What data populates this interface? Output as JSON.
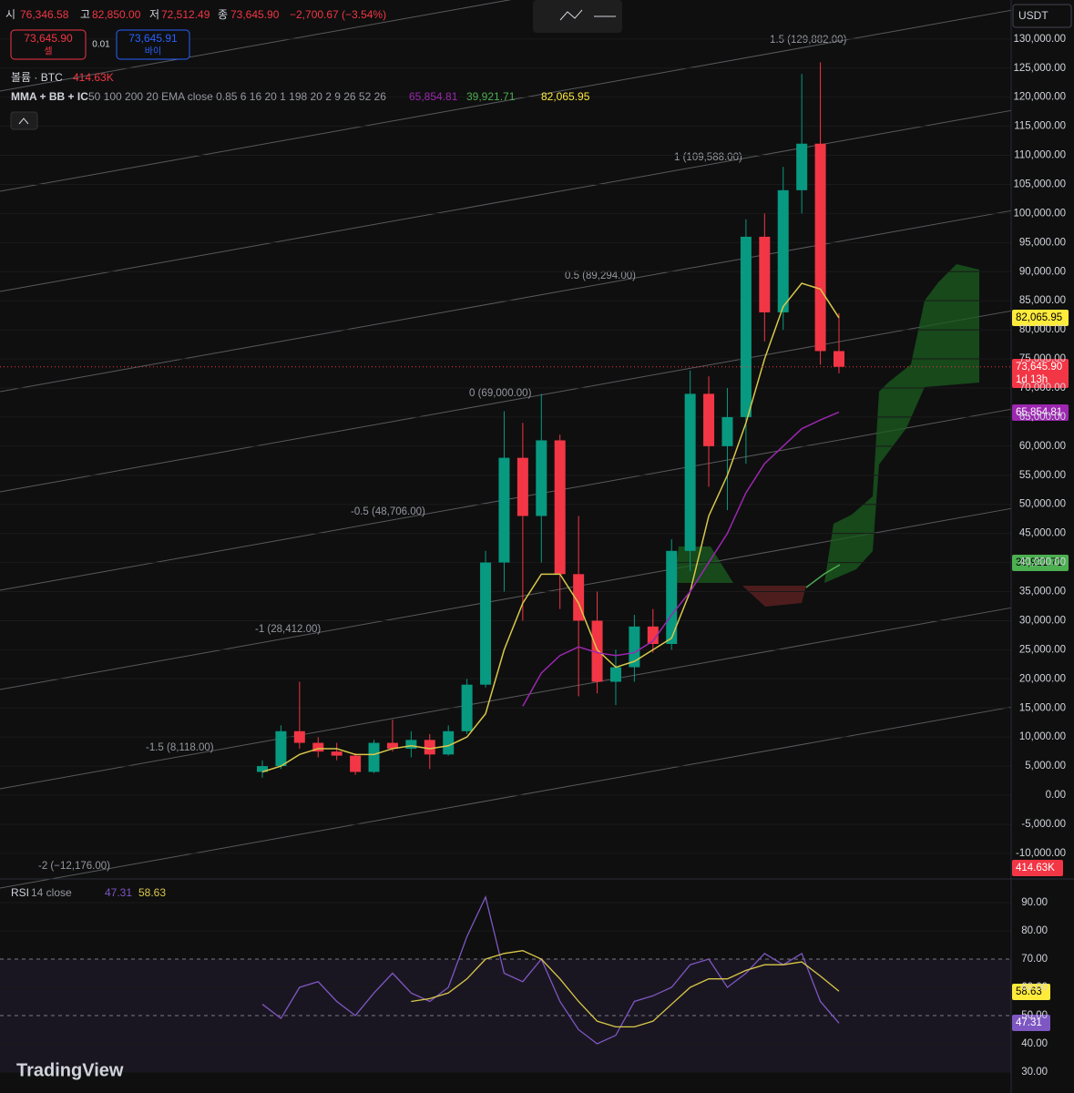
{
  "header": {
    "open_label": "시",
    "open": "76,346.58",
    "high_label": "고",
    "high": "82,850.00",
    "low_label": "저",
    "low": "72,512.49",
    "close_label": "종",
    "close": "73,645.90",
    "change": "−2,700.67 (−3.54%)"
  },
  "trade": {
    "sell_price": "73,645.90",
    "sell_label": "셀",
    "spread": "0.01",
    "buy_price": "73,645.91",
    "buy_label": "바이"
  },
  "volume_legend": {
    "title": "볼륨 · BTC",
    "value": "414.63K"
  },
  "indicator_legend": {
    "title": "MMA + BB + IC",
    "params": "50 100 200 20 EMA close 0.85 6 16 20 1 198 20 2 9 26 52 26",
    "v1": "65,854.81",
    "v2": "39,921.71",
    "v3": "82,065.95"
  },
  "currency": "USDT",
  "fib_labels": [
    "1.5 (129,882.00)",
    "1 (109,588.00)",
    "0.5 (89,294.00)",
    "0 (69,000.00)",
    "-0.5 (48,706.00)",
    "-1 (28,412.00)",
    "-1.5 (8,118.00)",
    "-2 (−12,176.00)"
  ],
  "axis_tags": {
    "ma_top": "82,065.95",
    "price": "73,645.90",
    "countdown": "1d 13h",
    "ma_mid": "65,854.81",
    "cloud": "39,921.71",
    "volume": "414.63K",
    "rsi_ma": "58.63",
    "rsi": "47.31"
  },
  "rsi_legend": {
    "title": "RSI",
    "params": "14 close",
    "v1": "47.31",
    "v2": "58.63"
  },
  "logo": "TradingView",
  "chart_data": [
    {
      "type": "candlestick",
      "categories": [
        null,
        null,
        null,
        null,
        null,
        null,
        null,
        null,
        null,
        null,
        null,
        null,
        null,
        null,
        null,
        null,
        null,
        null,
        null,
        null,
        null,
        null,
        null,
        null,
        null,
        null,
        null,
        null,
        null,
        null,
        null,
        null
      ],
      "open": [
        4000,
        5000,
        11000,
        9000,
        7500,
        6800,
        4000,
        9000,
        8000,
        9500,
        7000,
        11000,
        19000,
        40000,
        58000,
        48000,
        61000,
        38000,
        30000,
        19500,
        22000,
        29000,
        26000,
        42000,
        69000,
        60000,
        65000,
        96000,
        83000,
        104000,
        112000,
        76346.58
      ],
      "high": [
        6000,
        12000,
        19500,
        10000,
        9000,
        7200,
        9500,
        13000,
        11000,
        10500,
        12000,
        20000,
        42000,
        66000,
        64000,
        69000,
        62000,
        48000,
        35000,
        25000,
        31000,
        32000,
        44000,
        73000,
        72000,
        70000,
        99000,
        100000,
        108000,
        124000,
        126000,
        82850
      ],
      "low": [
        3000,
        4500,
        8000,
        6500,
        6000,
        3500,
        3800,
        7500,
        6500,
        4500,
        6800,
        10500,
        18500,
        35000,
        30000,
        40000,
        32000,
        17000,
        17500,
        15500,
        19500,
        24500,
        25000,
        38500,
        53000,
        49000,
        57000,
        78000,
        80000,
        100000,
        74000,
        72512.49
      ],
      "close": [
        5000,
        11000,
        9000,
        7500,
        6800,
        4000,
        9000,
        8000,
        9500,
        7000,
        11000,
        19000,
        40000,
        58000,
        48000,
        61000,
        38000,
        30000,
        19500,
        22000,
        29000,
        26000,
        42000,
        69000,
        60000,
        65000,
        96000,
        83000,
        104000,
        112000,
        76346.58,
        73645.9
      ],
      "overlays": [
        {
          "color": "#d9c84a",
          "values": [
            4000,
            5000,
            7000,
            8000,
            8000,
            7000,
            7000,
            8000,
            8500,
            8000,
            8500,
            10000,
            14000,
            25000,
            33000,
            38000,
            38000,
            33000,
            25000,
            22000,
            23000,
            25000,
            27000,
            35000,
            48000,
            55000,
            64000,
            75000,
            84000,
            88000,
            87000,
            82065.95
          ]
        },
        {
          "color": "#9c27b0",
          "values": [
            null,
            null,
            null,
            null,
            null,
            null,
            null,
            null,
            null,
            null,
            null,
            null,
            null,
            null,
            15300,
            21000,
            24000,
            25500,
            24500,
            24000,
            24500,
            26500,
            31000,
            35000,
            40000,
            45000,
            52000,
            57000,
            60000,
            63000,
            64500,
            65854.81
          ]
        }
      ],
      "ylim": [
        -14400,
        136700
      ],
      "yticks": [
        {
          "value": 130000,
          "label": "130,000.00"
        },
        {
          "value": 125000,
          "label": "125,000.00"
        },
        {
          "value": 120000,
          "label": "120,000.00"
        },
        {
          "value": 115000,
          "label": "115,000.00"
        },
        {
          "value": 110000,
          "label": "110,000.00"
        },
        {
          "value": 105000,
          "label": "105,000.00"
        },
        {
          "value": 100000,
          "label": "100,000.00"
        },
        {
          "value": 95000,
          "label": "95,000.00"
        },
        {
          "value": 90000,
          "label": "90,000.00"
        },
        {
          "value": 85000,
          "label": "85,000.00"
        },
        {
          "value": 80000,
          "label": "80,000.00"
        },
        {
          "value": 75000,
          "label": "75,000.00"
        },
        {
          "value": 70000,
          "label": "70,000.00"
        },
        {
          "value": 65000,
          "label": "65,000.00"
        },
        {
          "value": 60000,
          "label": "60,000.00"
        },
        {
          "value": 55000,
          "label": "55,000.00"
        },
        {
          "value": 50000,
          "label": "50,000.00"
        },
        {
          "value": 45000,
          "label": "45,000.00"
        },
        {
          "value": 40000,
          "label": "40,000.00"
        },
        {
          "value": 35000,
          "label": "35,000.00"
        },
        {
          "value": 30000,
          "label": "30,000.00"
        },
        {
          "value": 25000,
          "label": "25,000.00"
        },
        {
          "value": 20000,
          "label": "20,000.00"
        },
        {
          "value": 15000,
          "label": "15,000.00"
        },
        {
          "value": 10000,
          "label": "10,000.00"
        },
        {
          "value": 5000,
          "label": "5,000.00"
        },
        {
          "value": 0,
          "label": "0.00"
        },
        {
          "value": -5000,
          "label": "-5,000.00"
        },
        {
          "value": -10000,
          "label": "-10,000.00"
        }
      ],
      "up_color": "#089981",
      "down_color": "#f23645"
    },
    {
      "type": "line",
      "series": [
        {
          "color": "#7e57c2",
          "values": [
            54,
            49,
            60,
            62,
            55,
            50,
            58,
            65,
            58,
            55,
            60,
            78,
            92,
            65,
            62,
            70,
            55,
            45,
            40,
            43,
            55,
            57,
            60,
            68,
            70,
            60,
            65,
            72,
            68,
            72,
            55,
            47.31
          ]
        },
        {
          "color": "#d9c84a",
          "values": [
            null,
            null,
            null,
            null,
            null,
            null,
            null,
            null,
            55,
            56,
            58,
            63,
            70,
            72,
            73,
            70,
            63,
            55,
            48,
            46,
            46,
            48,
            54,
            60,
            63,
            63,
            66,
            68,
            68,
            69,
            64,
            58.63
          ]
        }
      ],
      "ylim": [
        27.4,
        98.4
      ],
      "yticks": [
        {
          "value": 90,
          "label": "90.00"
        },
        {
          "value": 80,
          "label": "80.00"
        },
        {
          "value": 70,
          "label": "70.00"
        },
        {
          "value": 60,
          "label": "60.00"
        },
        {
          "value": 50,
          "label": "50.00"
        },
        {
          "value": 40,
          "label": "40.00"
        },
        {
          "value": 30,
          "label": "30.00"
        }
      ]
    }
  ]
}
